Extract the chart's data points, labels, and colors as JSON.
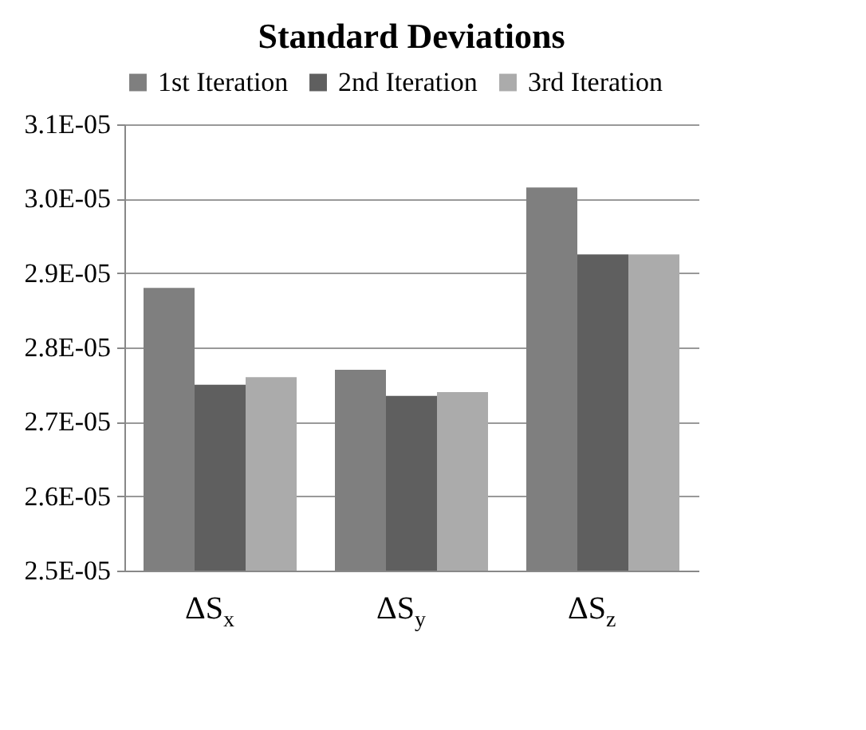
{
  "chart_data": {
    "type": "bar",
    "title": "Standard Deviations",
    "categories": [
      "ΔS$_{x}$",
      "ΔS$_{y}$",
      "ΔS$_{z}$"
    ],
    "series": [
      {
        "name": "1st Iteration",
        "color": "#7f7f7f",
        "values": [
          2.88e-05,
          2.77e-05,
          3.015e-05
        ]
      },
      {
        "name": "2nd Iteration",
        "color": "#5f5f5f",
        "values": [
          2.75e-05,
          2.735e-05,
          2.925e-05
        ]
      },
      {
        "name": "3rd Iteration",
        "color": "#ababab",
        "values": [
          2.76e-05,
          2.74e-05,
          2.925e-05
        ]
      }
    ],
    "ylim": [
      2.5e-05,
      3.1e-05
    ],
    "yticks": [
      {
        "value": 2.5e-05,
        "label": "2.5E-05"
      },
      {
        "value": 2.6e-05,
        "label": "2.6E-05"
      },
      {
        "value": 2.7e-05,
        "label": "2.7E-05"
      },
      {
        "value": 2.8e-05,
        "label": "2.8E-05"
      },
      {
        "value": 2.9e-05,
        "label": "2.9E-05"
      },
      {
        "value": 3e-05,
        "label": "3.0E-05"
      },
      {
        "value": 3.1e-05,
        "label": "3.1E-05"
      }
    ],
    "grid": "y",
    "legend": "top"
  }
}
